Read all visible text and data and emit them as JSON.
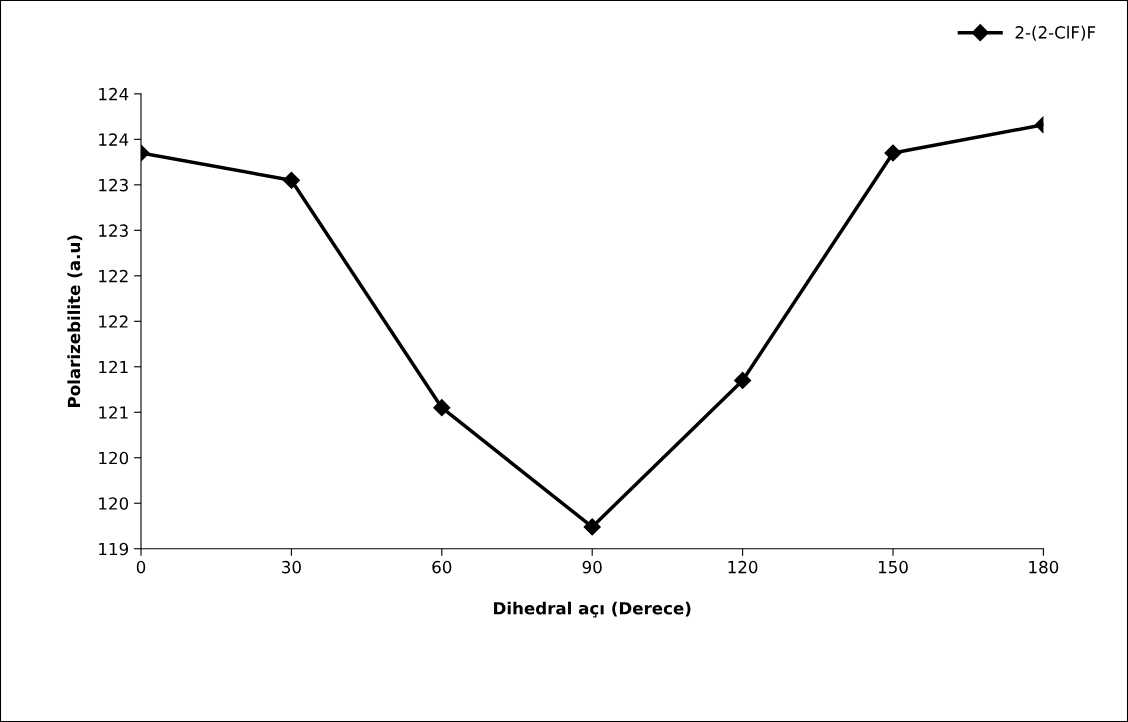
{
  "chart_data": {
    "type": "line",
    "xlabel": "Dihedral açı (Derece)",
    "ylabel": "Polarizebilite (a.u)",
    "x": [
      0,
      30,
      60,
      90,
      120,
      150,
      180
    ],
    "series": [
      {
        "name": "2-(2-ClF)F",
        "color": "#000000",
        "values": [
          123.35,
          123.05,
          120.55,
          119.24,
          120.85,
          123.35,
          123.66
        ]
      }
    ],
    "xlim": [
      0,
      180
    ],
    "xticks": [
      0,
      30,
      60,
      90,
      120,
      150,
      180
    ],
    "ylim": [
      119,
      124
    ],
    "yticks": [
      119,
      {
        "value": 119.5,
        "label": "120"
      },
      {
        "value": 120,
        "label": "120"
      },
      {
        "value": 120.5,
        "label": "121"
      },
      {
        "value": 121,
        "label": "121"
      },
      {
        "value": 121.5,
        "label": "122"
      },
      {
        "value": 122,
        "label": "122"
      },
      {
        "value": 122.5,
        "label": "123"
      },
      {
        "value": 123,
        "label": "123"
      },
      {
        "value": 123.5,
        "label": "124"
      },
      {
        "value": 124,
        "label": "124"
      }
    ],
    "marker": "diamond",
    "line_style": "solid",
    "legend": "top right",
    "grid": false
  }
}
